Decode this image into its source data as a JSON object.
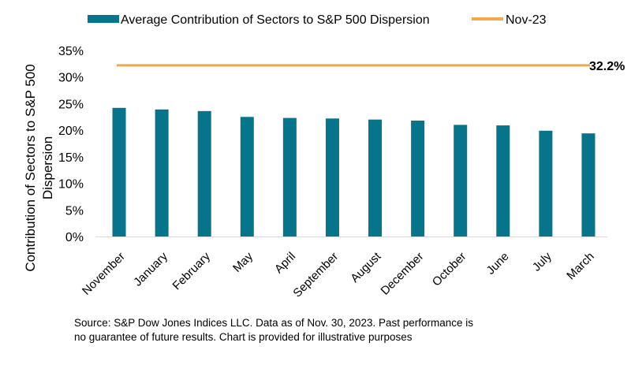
{
  "chart_data": {
    "type": "bar",
    "categories": [
      "November",
      "January",
      "February",
      "May",
      "April",
      "September",
      "August",
      "December",
      "October",
      "June",
      "July",
      "March"
    ],
    "series": [
      {
        "name": "Average Contribution of Sectors to S&P 500 Dispersion",
        "color": "#06748b",
        "values": [
          24.2,
          23.9,
          23.6,
          22.5,
          22.3,
          22.2,
          22.0,
          21.8,
          21.0,
          20.9,
          19.9,
          19.4
        ]
      }
    ],
    "reference_line": {
      "name": "Nov-23",
      "value": 32.2,
      "label": "32.2%",
      "color": "#f0a848"
    },
    "ylabel_lines": [
      "Contribution of Sectors to S&P 500",
      "Dispersion"
    ],
    "xlabel": "",
    "ylim": [
      0,
      35
    ],
    "yticks": [
      "0%",
      "5%",
      "10%",
      "15%",
      "20%",
      "25%",
      "30%",
      "35%"
    ],
    "ytick_values": [
      0,
      5,
      10,
      15,
      20,
      25,
      30,
      35
    ],
    "legend_position": "top"
  },
  "source_text": "Source: S&P Dow Jones Indices LLC. Data as of Nov. 30, 2023.  Past performance is no guarantee of future results. Chart is provided for illustrative  purposes"
}
